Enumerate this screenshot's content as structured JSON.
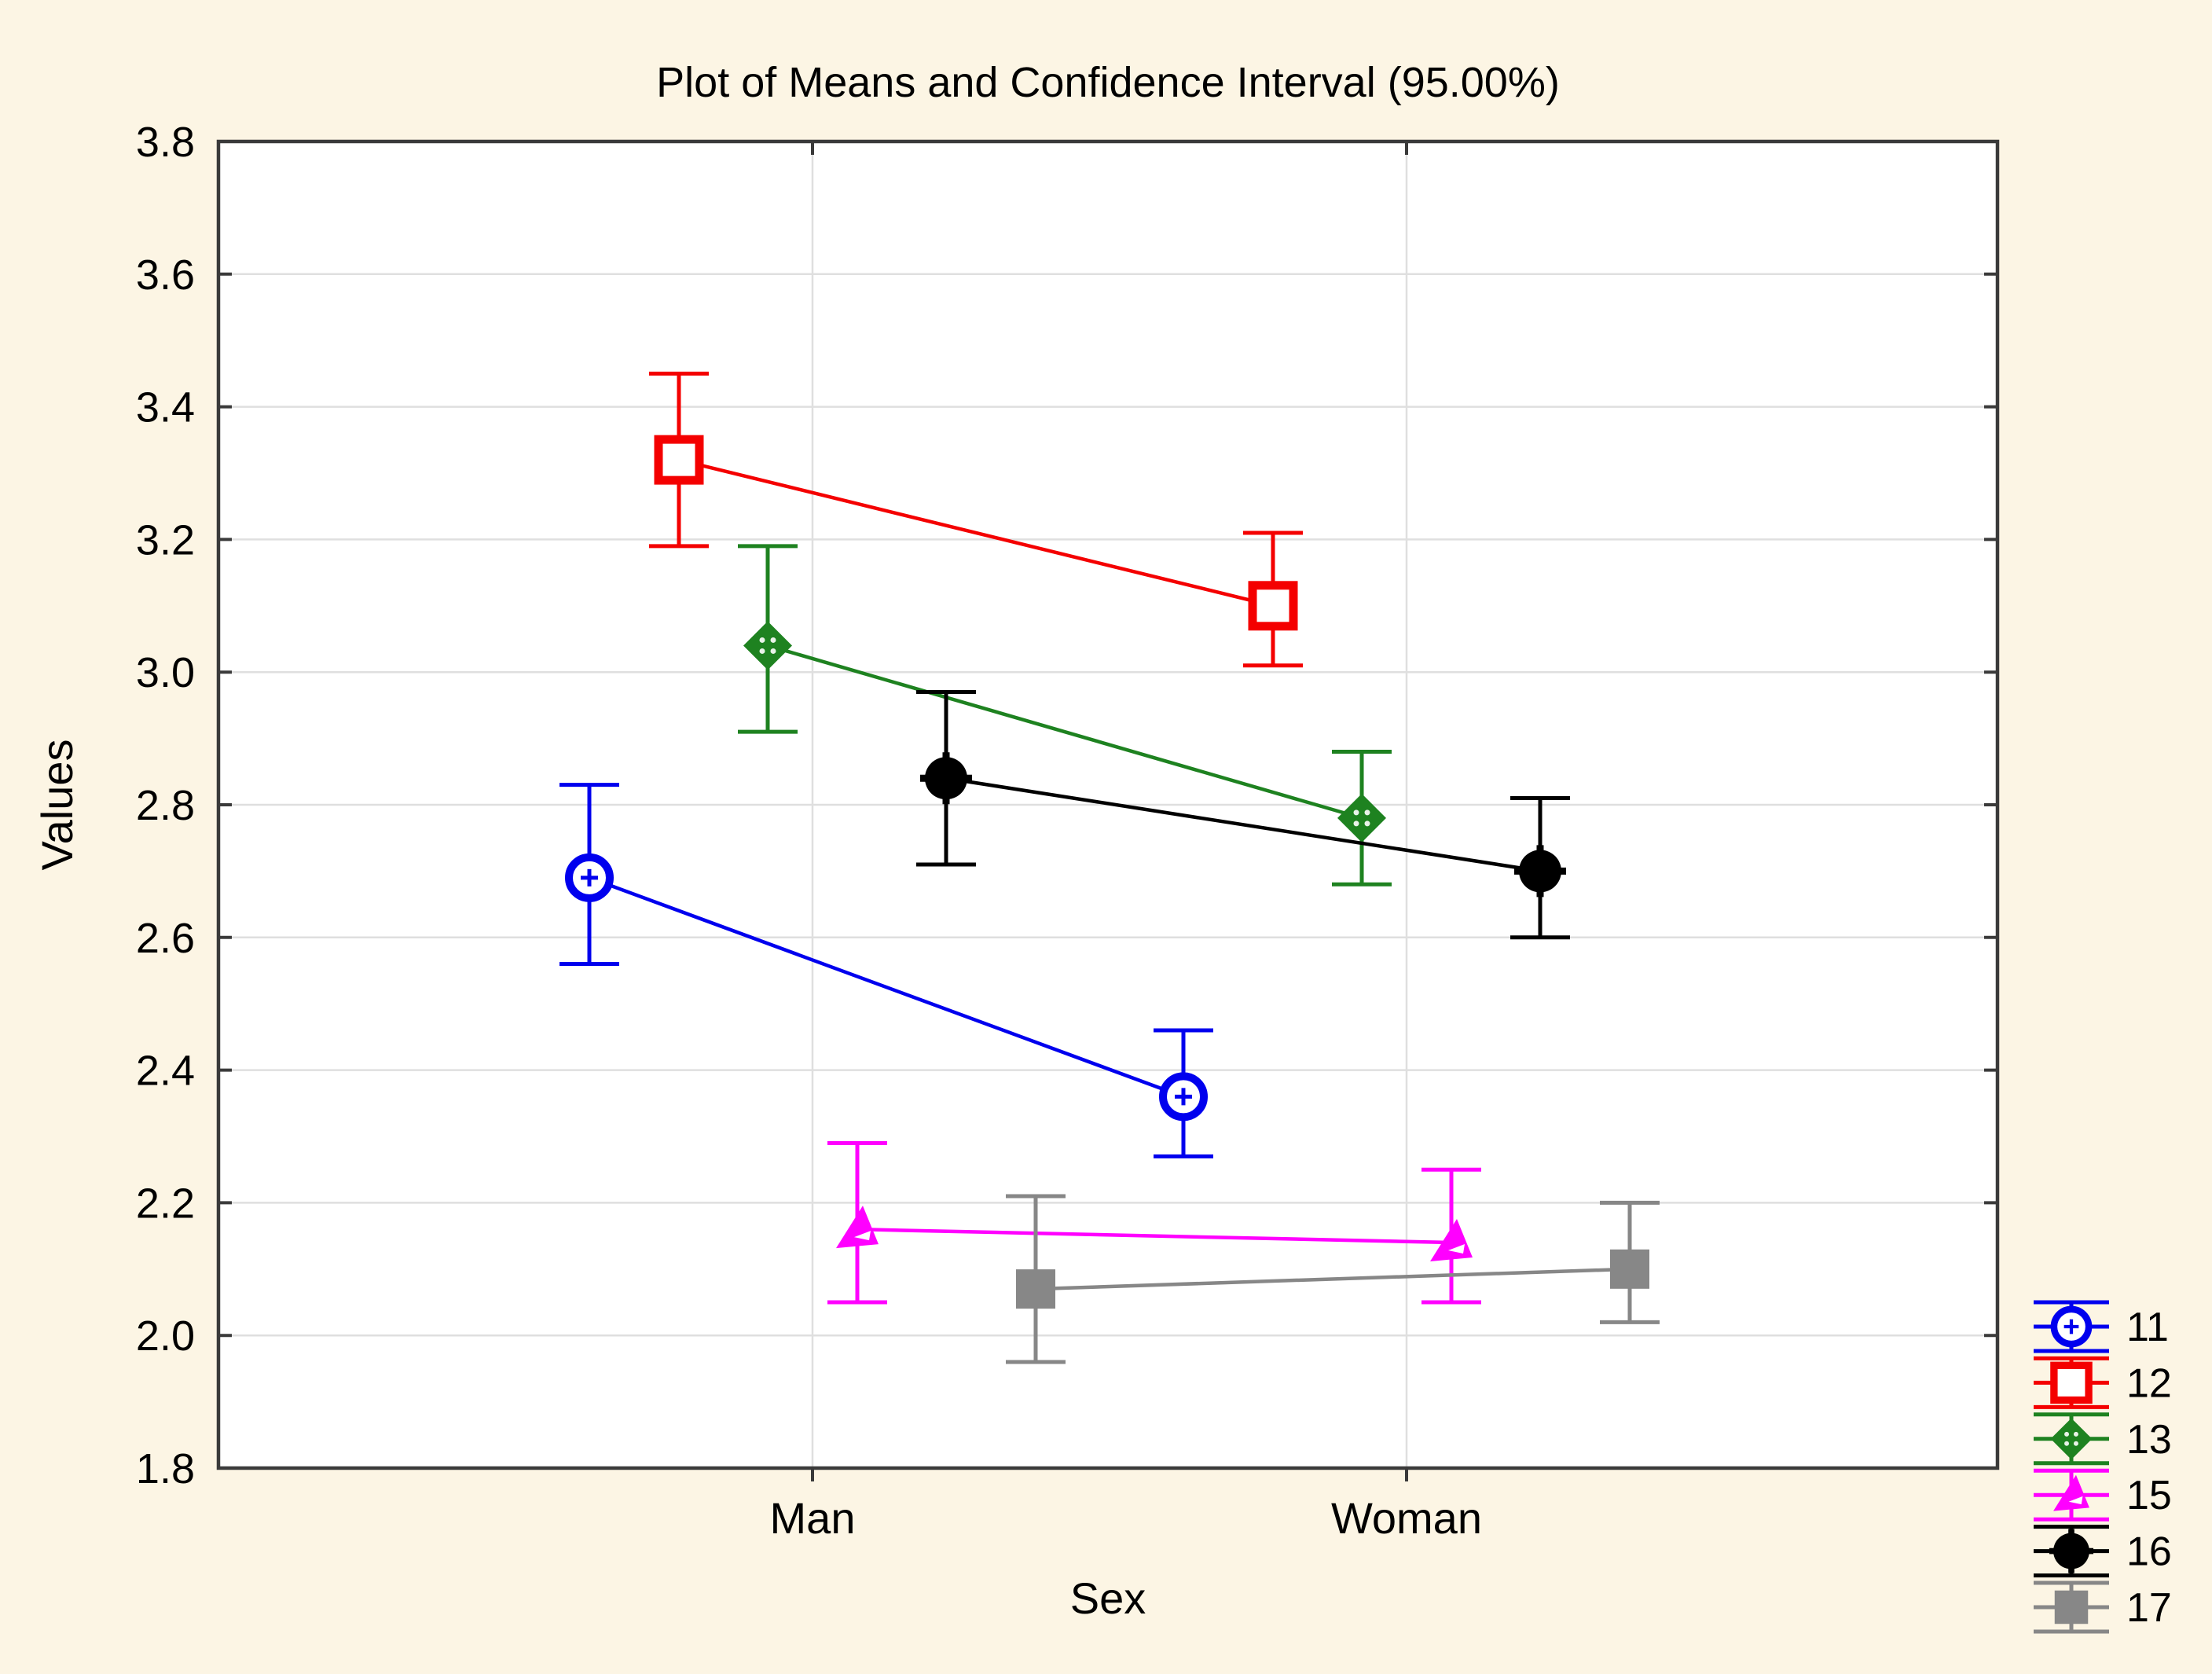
{
  "window": {
    "background_color": "#FCF5E4",
    "plot_background_color": "#FFFFFF",
    "frame_color": "#3A3A3A",
    "grid_color": "#DFDFDF"
  },
  "chart_data": {
    "type": "line",
    "subtype": "means-with-95pct-confidence-intervals",
    "title": "Plot of Means and Confidence Interval (95.00%)",
    "xlabel": "Sex",
    "ylabel": "Values",
    "categories": [
      "Man",
      "Woman"
    ],
    "y_tick_labels": [
      "1.8",
      "2.0",
      "2.2",
      "2.4",
      "2.6",
      "2.8",
      "3.0",
      "3.2",
      "3.4",
      "3.6",
      "3.8"
    ],
    "ylim": [
      1.8,
      3.8
    ],
    "grid": true,
    "legend_position": "outside-bottom-right",
    "series": [
      {
        "name": "11",
        "color": "#0000EE",
        "marker": "circle-open-cross",
        "means": [
          2.69,
          2.36
        ],
        "ci_low": [
          2.56,
          2.27
        ],
        "ci_high": [
          2.83,
          2.46
        ]
      },
      {
        "name": "12",
        "color": "#F40000",
        "marker": "square-open",
        "means": [
          3.32,
          3.1
        ],
        "ci_low": [
          3.19,
          3.01
        ],
        "ci_high": [
          3.45,
          3.21
        ]
      },
      {
        "name": "13",
        "color": "#1E8220",
        "marker": "diamond-filled",
        "means": [
          3.04,
          2.78
        ],
        "ci_low": [
          2.91,
          2.68
        ],
        "ci_high": [
          3.19,
          2.88
        ]
      },
      {
        "name": "15",
        "color": "#FF00FF",
        "marker": "triangle-filled",
        "means": [
          2.16,
          2.14
        ],
        "ci_low": [
          2.05,
          2.05
        ],
        "ci_high": [
          2.29,
          2.25
        ]
      },
      {
        "name": "16",
        "color": "#000000",
        "marker": "circle-filled",
        "means": [
          2.84,
          2.7
        ],
        "ci_low": [
          2.71,
          2.6
        ],
        "ci_high": [
          2.97,
          2.81
        ]
      },
      {
        "name": "17",
        "color": "#878787",
        "marker": "square-filled",
        "means": [
          2.07,
          2.1
        ],
        "ci_low": [
          1.96,
          2.02
        ],
        "ci_high": [
          2.21,
          2.2
        ]
      }
    ]
  }
}
